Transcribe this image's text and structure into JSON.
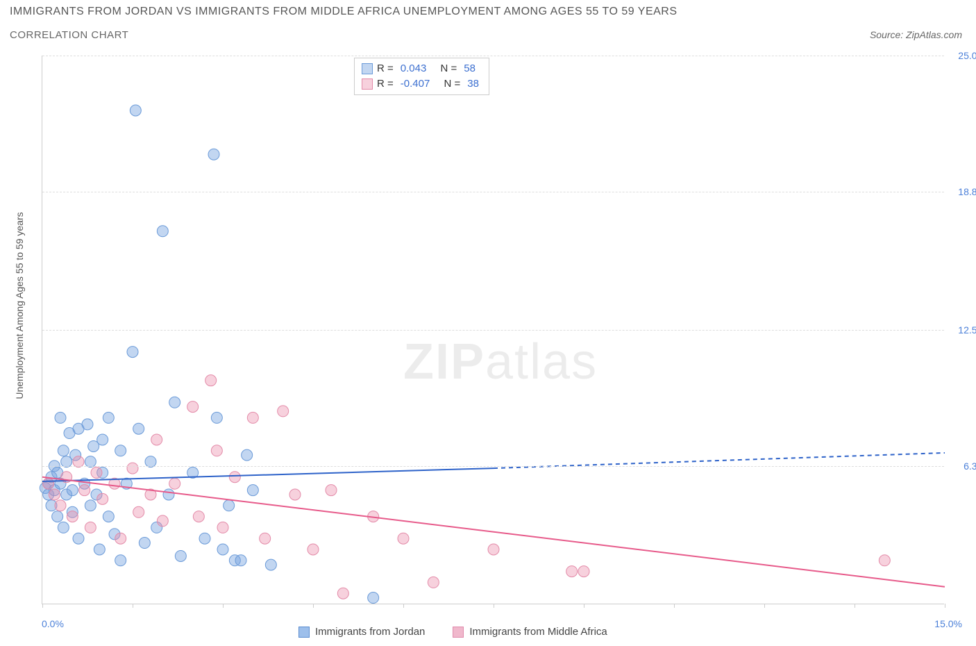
{
  "title": "IMMIGRANTS FROM JORDAN VS IMMIGRANTS FROM MIDDLE AFRICA UNEMPLOYMENT AMONG AGES 55 TO 59 YEARS",
  "subtitle": "CORRELATION CHART",
  "source": "Source: ZipAtlas.com",
  "y_axis_label": "Unemployment Among Ages 55 to 59 years",
  "watermark_bold": "ZIP",
  "watermark_light": "atlas",
  "chart": {
    "type": "scatter",
    "xlim": [
      0,
      15
    ],
    "ylim": [
      0,
      25
    ],
    "x_ticks": [
      0,
      1.5,
      3.0,
      4.5,
      6.0,
      7.5,
      9.0,
      10.5,
      12.0,
      13.5,
      15.0
    ],
    "y_ticks": [
      {
        "v": 6.3,
        "label": "6.3%"
      },
      {
        "v": 12.5,
        "label": "12.5%"
      },
      {
        "v": 18.8,
        "label": "18.8%"
      },
      {
        "v": 25.0,
        "label": "25.0%"
      }
    ],
    "x_label_0": "0.0%",
    "x_label_15": "15.0%",
    "background_color": "#ffffff",
    "grid_color": "#dddddd",
    "axis_color": "#cccccc",
    "marker_radius": 8,
    "marker_opacity": 0.55,
    "line_width": 2
  },
  "series": [
    {
      "name": "Immigrants from Jordan",
      "color_fill": "rgba(120,165,225,0.45)",
      "color_stroke": "#6a9ad8",
      "line_color": "#2d62c9",
      "r_label": "R =",
      "r_value": "0.043",
      "n_label": "N =",
      "n_value": "58",
      "trend": {
        "x0": 0,
        "y0": 5.6,
        "x1_solid": 7.5,
        "y1_solid": 6.2,
        "x1_dash": 15,
        "y1_dash": 6.9
      },
      "points": [
        [
          0.05,
          5.3
        ],
        [
          0.1,
          5.0
        ],
        [
          0.1,
          5.5
        ],
        [
          0.15,
          4.5
        ],
        [
          0.15,
          5.8
        ],
        [
          0.2,
          5.2
        ],
        [
          0.2,
          6.3
        ],
        [
          0.25,
          4.0
        ],
        [
          0.25,
          6.0
        ],
        [
          0.3,
          5.5
        ],
        [
          0.35,
          7.0
        ],
        [
          0.35,
          3.5
        ],
        [
          0.4,
          6.5
        ],
        [
          0.4,
          5.0
        ],
        [
          0.45,
          7.8
        ],
        [
          0.5,
          5.2
        ],
        [
          0.5,
          4.2
        ],
        [
          0.55,
          6.8
        ],
        [
          0.6,
          8.0
        ],
        [
          0.6,
          3.0
        ],
        [
          0.7,
          5.5
        ],
        [
          0.75,
          8.2
        ],
        [
          0.8,
          6.5
        ],
        [
          0.8,
          4.5
        ],
        [
          0.85,
          7.2
        ],
        [
          0.9,
          5.0
        ],
        [
          0.95,
          2.5
        ],
        [
          1.0,
          6.0
        ],
        [
          1.0,
          7.5
        ],
        [
          1.1,
          4.0
        ],
        [
          1.1,
          8.5
        ],
        [
          1.2,
          3.2
        ],
        [
          1.3,
          7.0
        ],
        [
          1.3,
          2.0
        ],
        [
          1.4,
          5.5
        ],
        [
          1.5,
          11.5
        ],
        [
          1.55,
          22.5
        ],
        [
          1.6,
          8.0
        ],
        [
          1.7,
          2.8
        ],
        [
          1.8,
          6.5
        ],
        [
          1.9,
          3.5
        ],
        [
          2.0,
          17.0
        ],
        [
          2.1,
          5.0
        ],
        [
          2.2,
          9.2
        ],
        [
          2.3,
          2.2
        ],
        [
          2.5,
          6.0
        ],
        [
          2.7,
          3.0
        ],
        [
          2.85,
          20.5
        ],
        [
          2.9,
          8.5
        ],
        [
          3.0,
          2.5
        ],
        [
          3.1,
          4.5
        ],
        [
          3.2,
          2.0
        ],
        [
          3.3,
          2.0
        ],
        [
          3.4,
          6.8
        ],
        [
          3.5,
          5.2
        ],
        [
          3.8,
          1.8
        ],
        [
          5.5,
          0.3
        ],
        [
          0.3,
          8.5
        ]
      ]
    },
    {
      "name": "Immigrants from Middle Africa",
      "color_fill": "rgba(235,140,170,0.40)",
      "color_stroke": "#e38aa8",
      "line_color": "#e75a8a",
      "r_label": "R =",
      "r_value": "-0.407",
      "n_label": "N =",
      "n_value": "38",
      "trend": {
        "x0": 0,
        "y0": 5.8,
        "x1_solid": 15,
        "y1_solid": 0.8,
        "x1_dash": 15,
        "y1_dash": 0.8
      },
      "points": [
        [
          0.1,
          5.5
        ],
        [
          0.2,
          5.0
        ],
        [
          0.3,
          4.5
        ],
        [
          0.4,
          5.8
        ],
        [
          0.5,
          4.0
        ],
        [
          0.6,
          6.5
        ],
        [
          0.7,
          5.2
        ],
        [
          0.8,
          3.5
        ],
        [
          0.9,
          6.0
        ],
        [
          1.0,
          4.8
        ],
        [
          1.2,
          5.5
        ],
        [
          1.3,
          3.0
        ],
        [
          1.5,
          6.2
        ],
        [
          1.6,
          4.2
        ],
        [
          1.8,
          5.0
        ],
        [
          1.9,
          7.5
        ],
        [
          2.0,
          3.8
        ],
        [
          2.2,
          5.5
        ],
        [
          2.5,
          9.0
        ],
        [
          2.6,
          4.0
        ],
        [
          2.8,
          10.2
        ],
        [
          2.9,
          7.0
        ],
        [
          3.0,
          3.5
        ],
        [
          3.2,
          5.8
        ],
        [
          3.5,
          8.5
        ],
        [
          3.7,
          3.0
        ],
        [
          4.0,
          8.8
        ],
        [
          4.2,
          5.0
        ],
        [
          4.5,
          2.5
        ],
        [
          4.8,
          5.2
        ],
        [
          5.0,
          0.5
        ],
        [
          5.5,
          4.0
        ],
        [
          6.0,
          3.0
        ],
        [
          6.5,
          1.0
        ],
        [
          7.5,
          2.5
        ],
        [
          8.8,
          1.5
        ],
        [
          9.0,
          1.5
        ],
        [
          14.0,
          2.0
        ]
      ]
    }
  ],
  "legend_bottom": [
    {
      "swatch_fill": "#9dbfeb",
      "swatch_border": "#5a8cd0",
      "label": "Immigrants from Jordan"
    },
    {
      "swatch_fill": "#f0b8cc",
      "swatch_border": "#e08aab",
      "label": "Immigrants from Middle Africa"
    }
  ]
}
